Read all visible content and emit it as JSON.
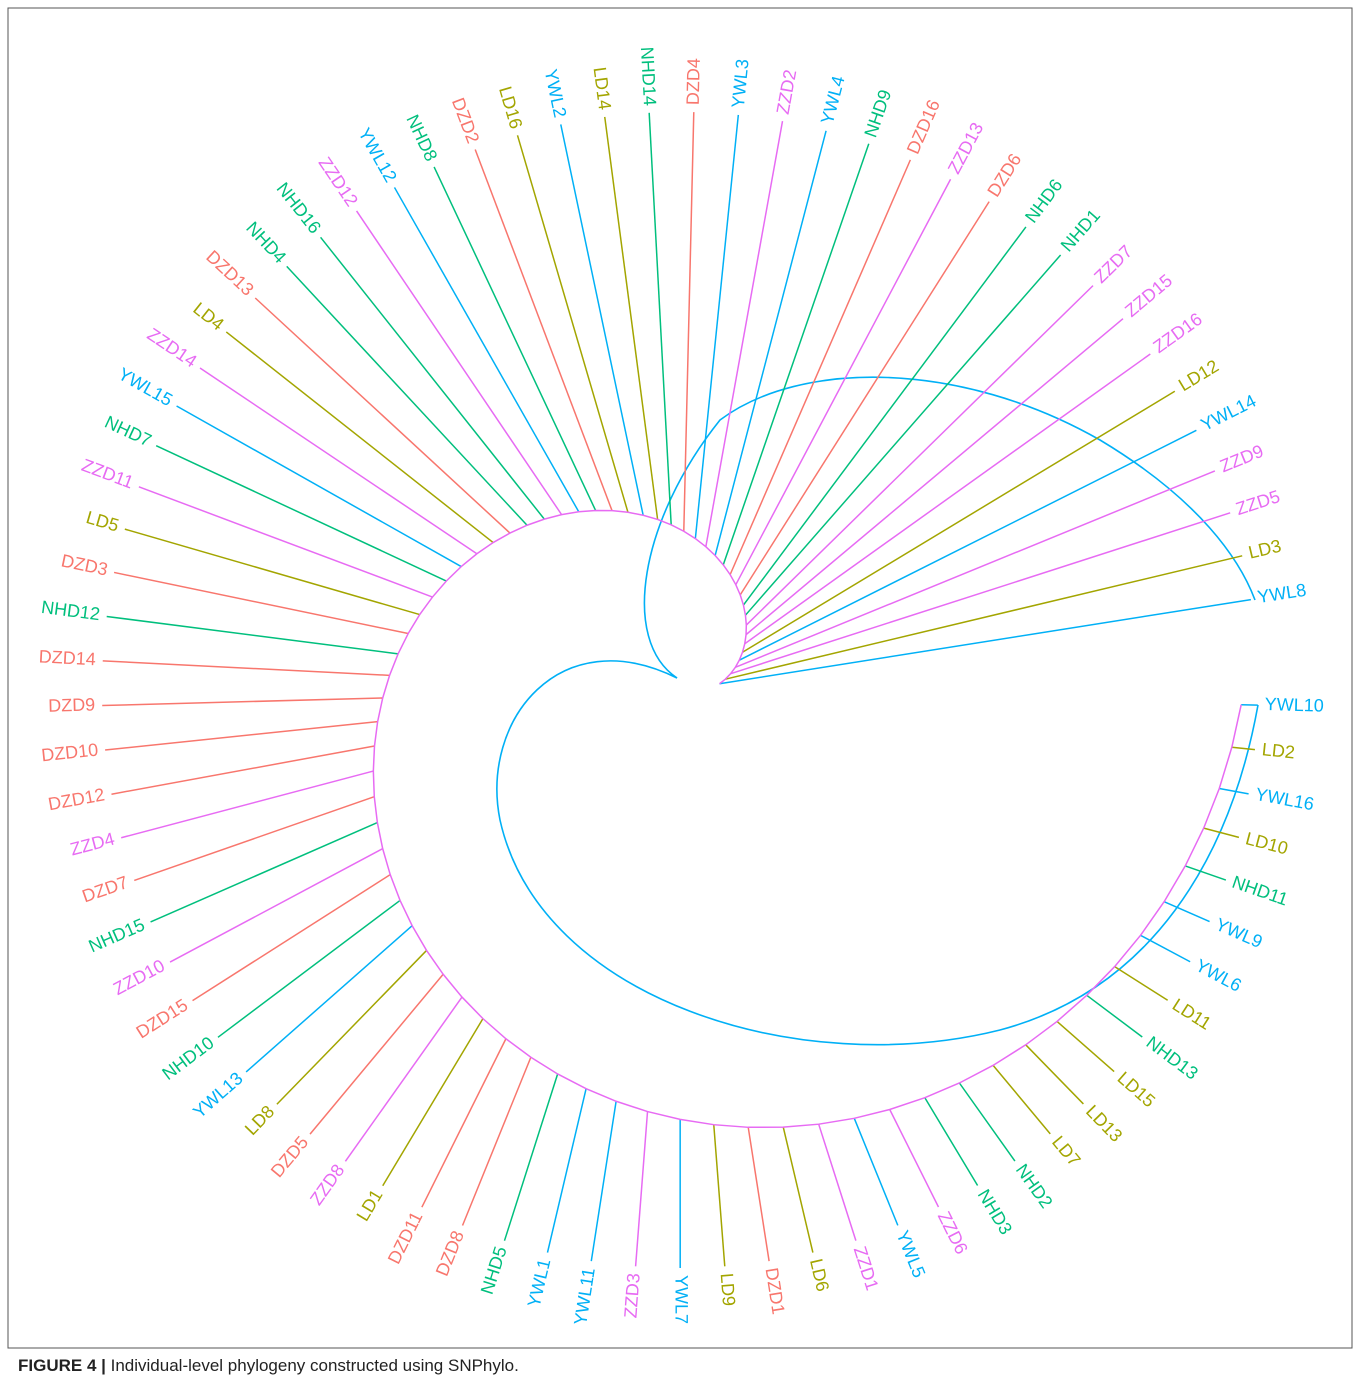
{
  "figure": {
    "leaves": [
      {
        "label": "YWL8",
        "color": "#00b0f6"
      },
      {
        "label": "LD3",
        "color": "#a3a500"
      },
      {
        "label": "ZZD5",
        "color": "#e76bf3"
      },
      {
        "label": "ZZD9",
        "color": "#e76bf3"
      },
      {
        "label": "YWL14",
        "color": "#00b0f6"
      },
      {
        "label": "LD12",
        "color": "#a3a500"
      },
      {
        "label": "ZZD16",
        "color": "#e76bf3"
      },
      {
        "label": "ZZD15",
        "color": "#e76bf3"
      },
      {
        "label": "ZZD7",
        "color": "#e76bf3"
      },
      {
        "label": "NHD1",
        "color": "#00bf7d"
      },
      {
        "label": "NHD6",
        "color": "#00bf7d"
      },
      {
        "label": "DZD6",
        "color": "#f8766d"
      },
      {
        "label": "ZZD13",
        "color": "#e76bf3"
      },
      {
        "label": "DZD16",
        "color": "#f8766d"
      },
      {
        "label": "NHD9",
        "color": "#00bf7d"
      },
      {
        "label": "YWL4",
        "color": "#00b0f6"
      },
      {
        "label": "ZZD2",
        "color": "#e76bf3"
      },
      {
        "label": "YWL3",
        "color": "#00b0f6"
      },
      {
        "label": "DZD4",
        "color": "#f8766d"
      },
      {
        "label": "NHD14",
        "color": "#00bf7d"
      },
      {
        "label": "LD14",
        "color": "#a3a500"
      },
      {
        "label": "YWL2",
        "color": "#00b0f6"
      },
      {
        "label": "LD16",
        "color": "#a3a500"
      },
      {
        "label": "DZD2",
        "color": "#f8766d"
      },
      {
        "label": "NHD8",
        "color": "#00bf7d"
      },
      {
        "label": "YWL12",
        "color": "#00b0f6"
      },
      {
        "label": "ZZD12",
        "color": "#e76bf3"
      },
      {
        "label": "NHD16",
        "color": "#00bf7d"
      },
      {
        "label": "NHD4",
        "color": "#00bf7d"
      },
      {
        "label": "DZD13",
        "color": "#f8766d"
      },
      {
        "label": "LD4",
        "color": "#a3a500"
      },
      {
        "label": "ZZD14",
        "color": "#e76bf3"
      },
      {
        "label": "YWL15",
        "color": "#00b0f6"
      },
      {
        "label": "NHD7",
        "color": "#00bf7d"
      },
      {
        "label": "ZZD11",
        "color": "#e76bf3"
      },
      {
        "label": "LD5",
        "color": "#a3a500"
      },
      {
        "label": "DZD3",
        "color": "#f8766d"
      },
      {
        "label": "NHD12",
        "color": "#00bf7d"
      },
      {
        "label": "DZD14",
        "color": "#f8766d"
      },
      {
        "label": "DZD9",
        "color": "#f8766d"
      },
      {
        "label": "DZD10",
        "color": "#f8766d"
      },
      {
        "label": "DZD12",
        "color": "#f8766d"
      },
      {
        "label": "ZZD4",
        "color": "#e76bf3"
      },
      {
        "label": "DZD7",
        "color": "#f8766d"
      },
      {
        "label": "NHD15",
        "color": "#00bf7d"
      },
      {
        "label": "ZZD10",
        "color": "#e76bf3"
      },
      {
        "label": "DZD15",
        "color": "#f8766d"
      },
      {
        "label": "NHD10",
        "color": "#00bf7d"
      },
      {
        "label": "YWL13",
        "color": "#00b0f6"
      },
      {
        "label": "LD8",
        "color": "#a3a500"
      },
      {
        "label": "DZD5",
        "color": "#f8766d"
      },
      {
        "label": "ZZD8",
        "color": "#e76bf3"
      },
      {
        "label": "LD1",
        "color": "#a3a500"
      },
      {
        "label": "DZD11",
        "color": "#f8766d"
      },
      {
        "label": "DZD8",
        "color": "#f8766d"
      },
      {
        "label": "NHD5",
        "color": "#00bf7d"
      },
      {
        "label": "YWL1",
        "color": "#00b0f6"
      },
      {
        "label": "YWL11",
        "color": "#00b0f6"
      },
      {
        "label": "ZZD3",
        "color": "#e76bf3"
      },
      {
        "label": "YWL7",
        "color": "#00b0f6"
      },
      {
        "label": "LD9",
        "color": "#a3a500"
      },
      {
        "label": "DZD1",
        "color": "#f8766d"
      },
      {
        "label": "LD6",
        "color": "#a3a500"
      },
      {
        "label": "ZZD1",
        "color": "#e76bf3"
      },
      {
        "label": "YWL5",
        "color": "#00b0f6"
      },
      {
        "label": "ZZD6",
        "color": "#e76bf3"
      },
      {
        "label": "NHD3",
        "color": "#00bf7d"
      },
      {
        "label": "NHD2",
        "color": "#00bf7d"
      },
      {
        "label": "LD7",
        "color": "#a3a500"
      },
      {
        "label": "LD13",
        "color": "#a3a500"
      },
      {
        "label": "LD15",
        "color": "#a3a500"
      },
      {
        "label": "NHD13",
        "color": "#00bf7d"
      },
      {
        "label": "LD11",
        "color": "#a3a500"
      },
      {
        "label": "YWL6",
        "color": "#00b0f6"
      },
      {
        "label": "YWL9",
        "color": "#00b0f6"
      },
      {
        "label": "NHD11",
        "color": "#00bf7d"
      },
      {
        "label": "LD10",
        "color": "#a3a500"
      },
      {
        "label": "YWL16",
        "color": "#00b0f6"
      },
      {
        "label": "LD2",
        "color": "#a3a500"
      },
      {
        "label": "YWL10",
        "color": "#00b0f6"
      }
    ]
  },
  "caption": {
    "label": "FIGURE 4 |",
    "text": " Individual-level phylogeny constructed using SNPhylo."
  }
}
